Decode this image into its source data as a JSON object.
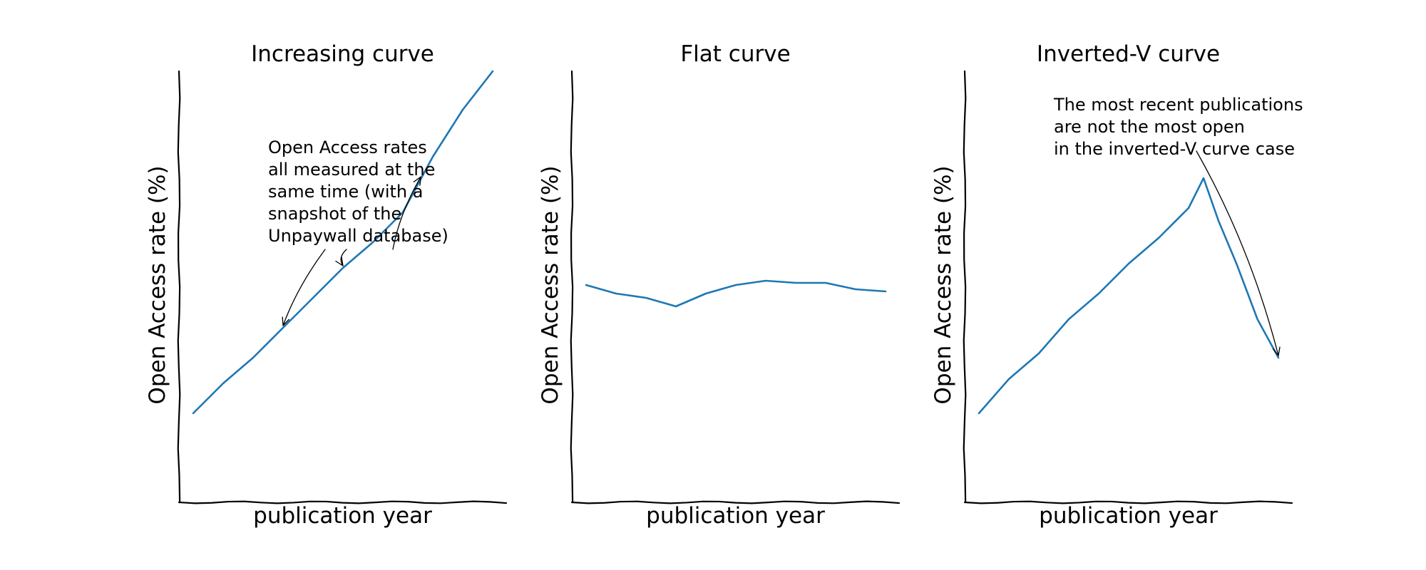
{
  "chart_data": [
    {
      "type": "line",
      "title": "Increasing curve",
      "xlabel": "publication year",
      "ylabel": "Open Access rate (%)",
      "ticks": "none",
      "series": [
        {
          "color": "#1f77b4",
          "x": [
            0,
            1,
            2,
            3,
            4,
            5,
            6,
            7,
            8,
            9,
            10
          ],
          "y": [
            20,
            27,
            33,
            40,
            47,
            54,
            60,
            67,
            80,
            91,
            100
          ]
        }
      ],
      "annotations": [
        {
          "text": "Open Access rates\nall measured at the\nsame time (with a\nsnapshot of the\nUnpaywall database)",
          "targets_x": [
            3,
            5,
            7.6
          ]
        }
      ]
    },
    {
      "type": "line",
      "title": "Flat curve",
      "xlabel": "publication year",
      "ylabel": "Open Access rate (%)",
      "ticks": "none",
      "series": [
        {
          "color": "#1f77b4",
          "x": [
            0,
            1,
            2,
            3,
            4,
            5,
            6,
            7,
            8,
            9,
            10
          ],
          "y": [
            50,
            48,
            47,
            45,
            48,
            50,
            51,
            50.5,
            50.5,
            49,
            48.5
          ]
        }
      ]
    },
    {
      "type": "line",
      "title": "Inverted-V curve",
      "xlabel": "publication year",
      "ylabel": "Open Access rate (%)",
      "ticks": "none",
      "series": [
        {
          "color": "#1f77b4",
          "x": [
            0,
            1,
            2,
            3,
            4,
            5,
            6,
            7,
            7.5,
            8,
            8.6,
            9.3,
            10
          ],
          "y": [
            20,
            28,
            34,
            42,
            48,
            55,
            61,
            68,
            75,
            65,
            55,
            42,
            33
          ]
        }
      ],
      "annotations": [
        {
          "text": "The most recent publications\nare not the most open\nin the inverted-V curve case",
          "targets_x": [
            10
          ]
        }
      ]
    }
  ]
}
